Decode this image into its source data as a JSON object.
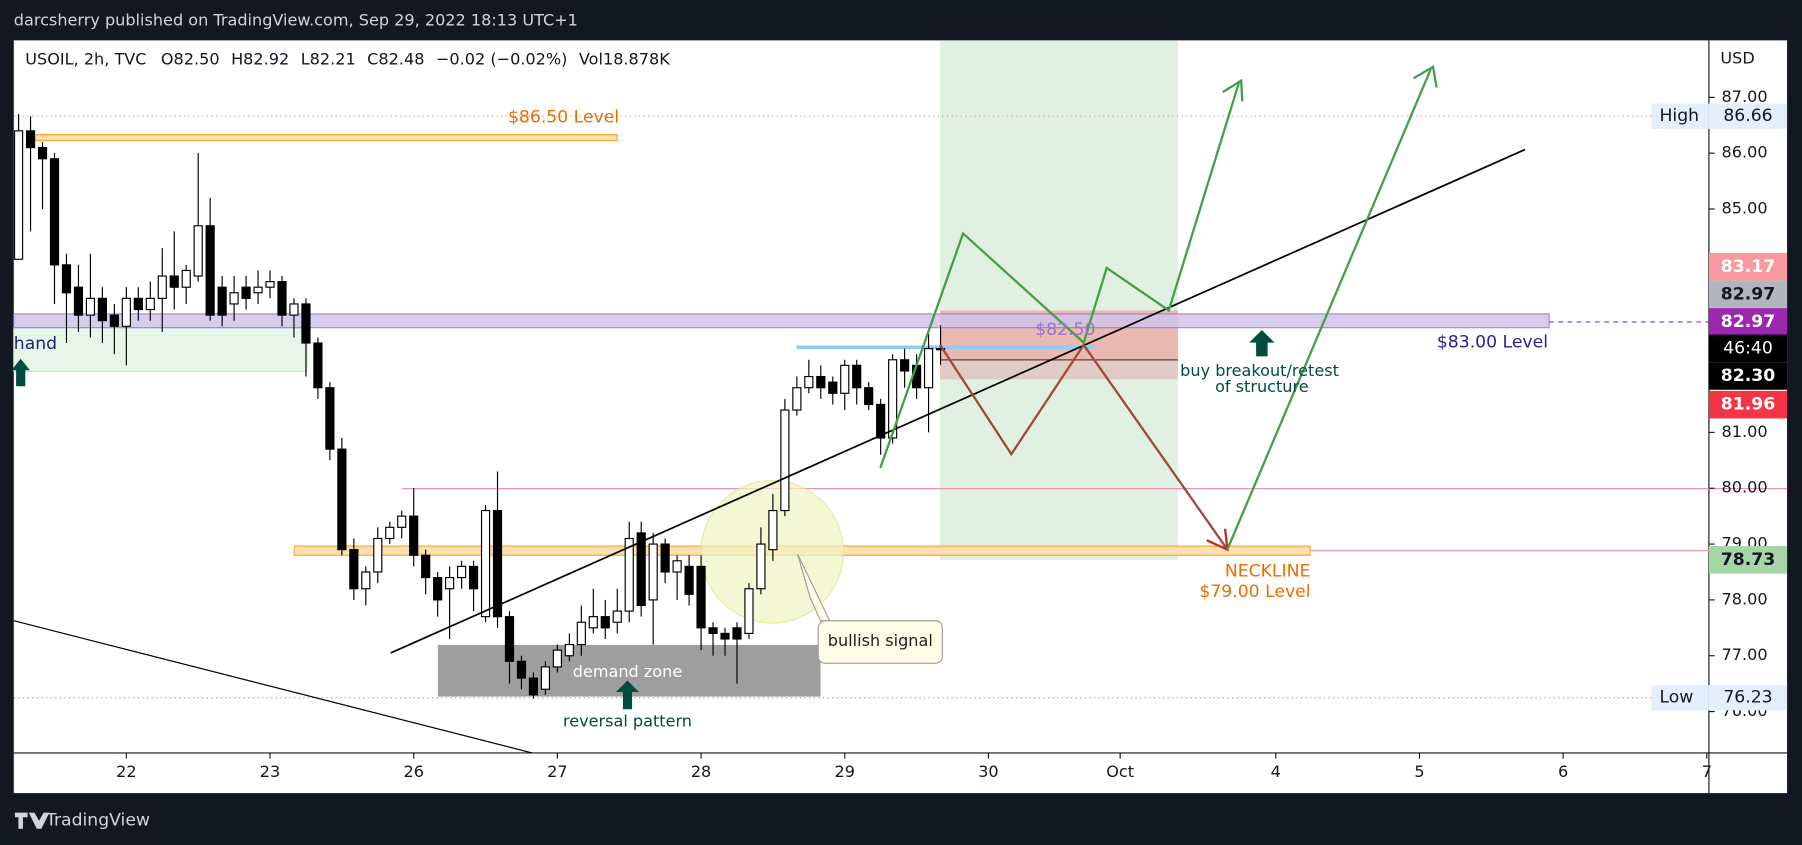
{
  "top_bar": "darcsherry published on TradingView.com, Sep 29, 2022 18:13 UTC+1",
  "footer": "TradingView",
  "chart_data": {
    "type": "candlestick",
    "symbol": "USOIL, 2h, TVC",
    "legend": [
      "O82.50",
      "H82.92",
      "L82.21",
      "C82.48",
      "−0.02 (−0.02%)",
      "Vol18.878K"
    ],
    "currency": "USD",
    "xlim": [
      -9.4,
      138.7
    ],
    "ylim": [
      75.26,
      88.02
    ],
    "xticks": [
      {
        "value": 0,
        "label": "22"
      },
      {
        "value": 12,
        "label": "23"
      },
      {
        "value": 24,
        "label": "26"
      },
      {
        "value": 36,
        "label": "27"
      },
      {
        "value": 48,
        "label": "28"
      },
      {
        "value": 60,
        "label": "29"
      },
      {
        "value": 72,
        "label": "30"
      },
      {
        "value": 83,
        "label": "Oct"
      },
      {
        "value": 96,
        "label": "4"
      },
      {
        "value": 108,
        "label": "5"
      },
      {
        "value": 120,
        "label": "6"
      },
      {
        "value": 132,
        "label": "7"
      }
    ],
    "yticks": [
      {
        "value": 76,
        "label": "76.00"
      },
      {
        "value": 77,
        "label": "77.00"
      },
      {
        "value": 78,
        "label": "78.00"
      },
      {
        "value": 79,
        "label": "79.00"
      },
      {
        "value": 80,
        "label": "80.00"
      },
      {
        "value": 81,
        "label": "81.00"
      },
      {
        "value": 84,
        "label": "84.00"
      },
      {
        "value": 85,
        "label": "85.00"
      },
      {
        "value": 86,
        "label": "86.00"
      },
      {
        "value": 87,
        "label": "87.00"
      }
    ],
    "x": [
      -9,
      -8,
      -7,
      -6,
      -5,
      -4,
      -3,
      -2,
      -1,
      0,
      1,
      2,
      3,
      4,
      5,
      6,
      7,
      8,
      9,
      10,
      11,
      12,
      13,
      14,
      15,
      16,
      17,
      18,
      19,
      20,
      21,
      22,
      23,
      24,
      25,
      26,
      27,
      28,
      29,
      30,
      31,
      32,
      33,
      34,
      35,
      36,
      37,
      38,
      39,
      40,
      41,
      42,
      43,
      44,
      45,
      46,
      47,
      48,
      49,
      50,
      51,
      52,
      53,
      54,
      55,
      56,
      57,
      58,
      59,
      60,
      61,
      62,
      63,
      64,
      65,
      66,
      67,
      68
    ],
    "open": [
      84.1,
      86.4,
      86.1,
      85.9,
      84.0,
      83.6,
      83.1,
      83.4,
      83.1,
      82.9,
      83.4,
      83.2,
      83.4,
      83.8,
      83.6,
      83.8,
      84.7,
      83.6,
      83.3,
      83.6,
      83.5,
      83.6,
      83.7,
      83.1,
      83.3,
      82.6,
      81.8,
      80.7,
      78.9,
      78.2,
      78.5,
      79.1,
      79.3,
      79.5,
      78.8,
      78.4,
      78.2,
      78.4,
      78.6,
      77.7,
      79.6,
      77.7,
      76.9,
      76.6,
      76.4,
      76.8,
      77.0,
      77.2,
      77.5,
      77.7,
      77.6,
      77.8,
      79.2,
      78.0,
      79.0,
      78.5,
      78.6,
      78.6,
      77.5,
      77.4,
      77.5,
      77.4,
      78.2,
      78.9,
      79.6,
      81.4,
      81.8,
      82.0,
      81.9,
      81.7,
      82.2,
      81.8,
      81.5,
      80.9,
      82.3,
      82.2,
      81.8,
      82.5
    ],
    "high": [
      86.7,
      86.66,
      86.2,
      86.0,
      84.2,
      84.0,
      84.2,
      83.6,
      83.3,
      83.6,
      83.6,
      83.7,
      84.3,
      84.6,
      84.0,
      86.0,
      85.2,
      83.8,
      83.8,
      83.8,
      83.9,
      83.9,
      83.8,
      83.4,
      83.4,
      82.7,
      81.9,
      80.9,
      79.1,
      78.6,
      79.3,
      79.4,
      79.6,
      80.0,
      78.9,
      78.5,
      78.6,
      78.7,
      78.7,
      79.7,
      80.3,
      77.8,
      77.0,
      76.7,
      76.9,
      77.2,
      77.4,
      77.9,
      78.2,
      78.0,
      78.2,
      79.4,
      79.4,
      79.2,
      79.1,
      78.8,
      78.8,
      78.8,
      77.6,
      77.5,
      77.6,
      78.3,
      79.3,
      79.9,
      81.6,
      82.0,
      82.3,
      82.2,
      82.0,
      82.3,
      82.3,
      81.9,
      81.6,
      82.4,
      82.5,
      82.4,
      82.8,
      82.92
    ],
    "low": [
      84.1,
      84.6,
      85.0,
      83.3,
      82.6,
      82.8,
      82.7,
      82.6,
      82.4,
      82.2,
      83.0,
      83.0,
      82.8,
      83.2,
      83.3,
      83.7,
      83.0,
      82.9,
      83.0,
      83.2,
      83.3,
      83.4,
      82.9,
      82.7,
      82.0,
      81.6,
      80.5,
      78.8,
      78.0,
      77.9,
      78.3,
      79.0,
      79.1,
      78.6,
      78.1,
      77.7,
      77.3,
      78.2,
      77.8,
      77.6,
      77.5,
      76.5,
      76.4,
      76.23,
      76.3,
      76.7,
      76.9,
      77.0,
      77.4,
      77.3,
      77.4,
      77.6,
      77.7,
      77.2,
      78.3,
      78.0,
      77.9,
      77.1,
      77.0,
      77.0,
      76.5,
      77.3,
      78.1,
      78.7,
      79.5,
      81.3,
      81.7,
      81.6,
      81.5,
      81.4,
      81.5,
      81.4,
      80.6,
      80.8,
      81.8,
      81.6,
      81.0,
      82.21
    ],
    "close": [
      86.4,
      86.1,
      85.9,
      84.0,
      83.5,
      83.1,
      83.4,
      83.0,
      82.9,
      83.4,
      83.2,
      83.4,
      83.8,
      83.6,
      83.9,
      84.7,
      83.1,
      83.1,
      83.5,
      83.4,
      83.6,
      83.7,
      83.1,
      83.3,
      82.6,
      81.8,
      80.7,
      78.9,
      78.2,
      78.5,
      79.1,
      79.3,
      79.5,
      78.8,
      78.4,
      78.0,
      78.4,
      78.6,
      78.2,
      79.6,
      77.7,
      76.9,
      76.6,
      76.3,
      76.8,
      77.1,
      77.2,
      77.6,
      77.7,
      77.5,
      77.8,
      79.1,
      77.9,
      79.0,
      78.5,
      78.7,
      78.1,
      77.5,
      77.4,
      77.3,
      77.3,
      78.2,
      79.0,
      79.6,
      81.4,
      81.8,
      82.0,
      81.8,
      81.7,
      82.2,
      81.8,
      81.5,
      80.9,
      82.3,
      82.1,
      81.8,
      82.5,
      82.48
    ],
    "price_labels": [
      {
        "label": "High",
        "value": 86.66,
        "color": "#e3effd"
      },
      {
        "value": 83.17,
        "color": "#f7999e"
      },
      {
        "value": 82.97,
        "color": "#b2b5be"
      },
      {
        "value": 82.97,
        "color": "#9c27b0"
      },
      {
        "label": "46:40",
        "color": "#000000"
      },
      {
        "value": 82.3,
        "color": "#000000"
      },
      {
        "value": 81.96,
        "color": "#f23645"
      },
      {
        "value": 78.73,
        "color": "#a5d6a7"
      },
      {
        "label": "Low",
        "value": 76.23,
        "color": "#e3effd"
      }
    ],
    "annotations": {
      "level_8650": "$86.50 Level",
      "level_8300": "$83.00 Level",
      "level_8250": "$82.50",
      "neckline": "NECKLINE",
      "level_7900": "$79.00 Level",
      "buy_1": "buy breakout/retest",
      "buy_2": "of structure",
      "bullish": "bullish signal",
      "demand_zone": "demand zone",
      "reversal": "reversal pattern",
      "demand_left": "hand"
    }
  }
}
